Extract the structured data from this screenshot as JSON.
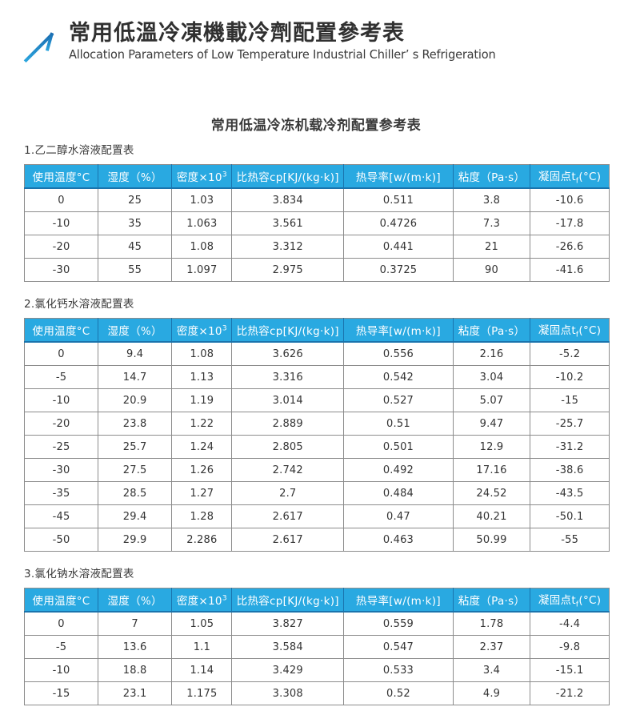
{
  "header": {
    "title_zh": "常用低溫冷凍機載冷劑配置參考表",
    "subtitle_en": "Allocation Parameters of Low Temperature Industrial Chiller’ s Refrigeration"
  },
  "main": {
    "title": "常用低温冷冻机载冷剂配置参考表"
  },
  "table_headers": [
    {
      "text": "使用温度°C"
    },
    {
      "text": "湿度（%）"
    },
    {
      "text": "密度×10",
      "sup": "3"
    },
    {
      "text": "比热容cp[KJ/(kg·k)]"
    },
    {
      "text": "热导率[w/(m·k)]"
    },
    {
      "text": "粘度（Pa·s）"
    },
    {
      "text": "凝固点t",
      "sub": "f",
      "post": "(°C)"
    }
  ],
  "sections": [
    {
      "label": "1.乙二醇水溶液配置表",
      "rows": [
        [
          "0",
          "25",
          "1.03",
          "3.834",
          "0.511",
          "3.8",
          "-10.6"
        ],
        [
          "-10",
          "35",
          "1.063",
          "3.561",
          "0.4726",
          "7.3",
          "-17.8"
        ],
        [
          "-20",
          "45",
          "1.08",
          "3.312",
          "0.441",
          "21",
          "-26.6"
        ],
        [
          "-30",
          "55",
          "1.097",
          "2.975",
          "0.3725",
          "90",
          "-41.6"
        ]
      ]
    },
    {
      "label": "2.氯化钙水溶液配置表",
      "rows": [
        [
          "0",
          "9.4",
          "1.08",
          "3.626",
          "0.556",
          "2.16",
          "-5.2"
        ],
        [
          "-5",
          "14.7",
          "1.13",
          "3.316",
          "0.542",
          "3.04",
          "-10.2"
        ],
        [
          "-10",
          "20.9",
          "1.19",
          "3.014",
          "0.527",
          "5.07",
          "-15"
        ],
        [
          "-20",
          "23.8",
          "1.22",
          "2.889",
          "0.51",
          "9.47",
          "-25.7"
        ],
        [
          "-25",
          "25.7",
          "1.24",
          "2.805",
          "0.501",
          "12.9",
          "-31.2"
        ],
        [
          "-30",
          "27.5",
          "1.26",
          "2.742",
          "0.492",
          "17.16",
          "-38.6"
        ],
        [
          "-35",
          "28.5",
          "1.27",
          "2.7",
          "0.484",
          "24.52",
          "-43.5"
        ],
        [
          "-45",
          "29.4",
          "1.28",
          "2.617",
          "0.47",
          "40.21",
          "-50.1"
        ],
        [
          "-50",
          "29.9",
          "2.286",
          "2.617",
          "0.463",
          "50.99",
          "-55"
        ]
      ]
    },
    {
      "label": "3.氯化钠水溶液配置表",
      "rows": [
        [
          "0",
          "7",
          "1.05",
          "3.827",
          "0.559",
          "1.78",
          "-4.4"
        ],
        [
          "-5",
          "13.6",
          "1.1",
          "3.584",
          "0.547",
          "2.37",
          "-9.8"
        ],
        [
          "-10",
          "18.8",
          "1.14",
          "3.429",
          "0.533",
          "3.4",
          "-15.1"
        ],
        [
          "-15",
          "23.1",
          "1.175",
          "3.308",
          "0.52",
          "4.9",
          "-21.2"
        ]
      ]
    }
  ],
  "colors": {
    "table_header_bg": "#29a9e1",
    "table_header_separator": "#1a74ad",
    "logo_blue_top": "#1a6cb0",
    "logo_blue_bottom": "#2ba5de",
    "border_gray": "#8c8c8c"
  }
}
